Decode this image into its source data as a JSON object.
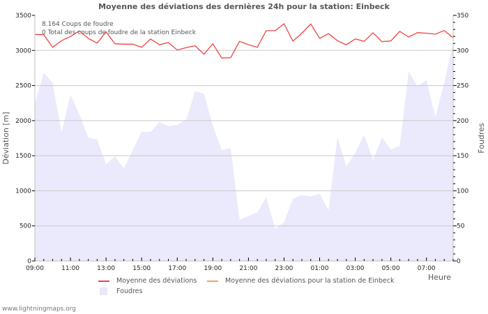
{
  "title": "Moyenne des déviations des dernières 24h pour la station: Einbeck",
  "info": {
    "line1": "8.164  Coups de foudre",
    "line2": "0 Total des coups de foudre de la station Einbeck"
  },
  "axes": {
    "left_title": "Déviation  [m]",
    "right_title": "Foudres",
    "x_title": "Heure",
    "left_ticks": [
      "0",
      "500",
      "1000",
      "1500",
      "2000",
      "2500",
      "3000",
      "3500"
    ],
    "right_ticks": [
      "0",
      "50",
      "100",
      "150",
      "200",
      "250",
      "300",
      "350"
    ],
    "x_ticks": [
      "09:00",
      "11:00",
      "13:00",
      "15:00",
      "17:00",
      "19:00",
      "21:00",
      "23:00",
      "01:00",
      "03:00",
      "05:00",
      "07:00"
    ]
  },
  "legend": {
    "items": [
      {
        "label": "Moyenne des déviations",
        "color": "#ee4444",
        "type": "line"
      },
      {
        "label": "Moyenne des déviations pour la station de Einbeck",
        "color": "#f4a060",
        "type": "line"
      },
      {
        "label": "Foudres",
        "color": "#e8e8fc",
        "type": "area"
      }
    ]
  },
  "footer": "www.lightningmaps.org",
  "colors": {
    "deviation_line": "#ee4444",
    "station_line": "#f4a060",
    "strikes_area": "#eaeafc",
    "grid": "#c8c8c8",
    "axis": "#c0c0c0"
  },
  "chart_data": {
    "type": "line",
    "title": "Moyenne des déviations des dernières 24h pour la station: Einbeck",
    "xlabel": "Heure",
    "ylabel": "Déviation  [m]",
    "y2label": "Foudres",
    "ylim": [
      0,
      3500
    ],
    "y2lim": [
      0,
      350
    ],
    "grid": true,
    "legend_position": "bottom",
    "x_tick_labels": [
      "09:00",
      "11:00",
      "13:00",
      "15:00",
      "17:00",
      "19:00",
      "21:00",
      "23:00",
      "01:00",
      "03:00",
      "05:00",
      "07:00"
    ],
    "x_interval_minutes": 30,
    "x_start": "09:00",
    "series": [
      {
        "name": "Moyenne des déviations",
        "type": "line",
        "axis": "left",
        "values": [
          3229,
          3225,
          3046,
          3139,
          3199,
          3278,
          3172,
          3105,
          3264,
          3095,
          3089,
          3089,
          3046,
          3162,
          3082,
          3112,
          3006,
          3040,
          3066,
          2946,
          3095,
          2890,
          2897,
          3129,
          3082,
          3046,
          3281,
          3281,
          3381,
          3132,
          3245,
          3378,
          3172,
          3239,
          3139,
          3080,
          3165,
          3129,
          3251,
          3125,
          3135,
          3271,
          3192,
          3254,
          3245,
          3232,
          3284,
          3179
        ]
      },
      {
        "name": "Moyenne des déviations pour la station de Einbeck",
        "type": "line",
        "axis": "left",
        "values": []
      },
      {
        "name": "Foudres",
        "type": "area",
        "axis": "right",
        "values": [
          224,
          268,
          254,
          183,
          237,
          209,
          176,
          173,
          138,
          149,
          132,
          158,
          184,
          184,
          198,
          192,
          194,
          201,
          242,
          238,
          193,
          158,
          161,
          59,
          64,
          69,
          91,
          46,
          55,
          89,
          94,
          92,
          96,
          72,
          177,
          135,
          154,
          180,
          144,
          176,
          159,
          164,
          270,
          249,
          258,
          205,
          254,
          311
        ]
      }
    ]
  }
}
